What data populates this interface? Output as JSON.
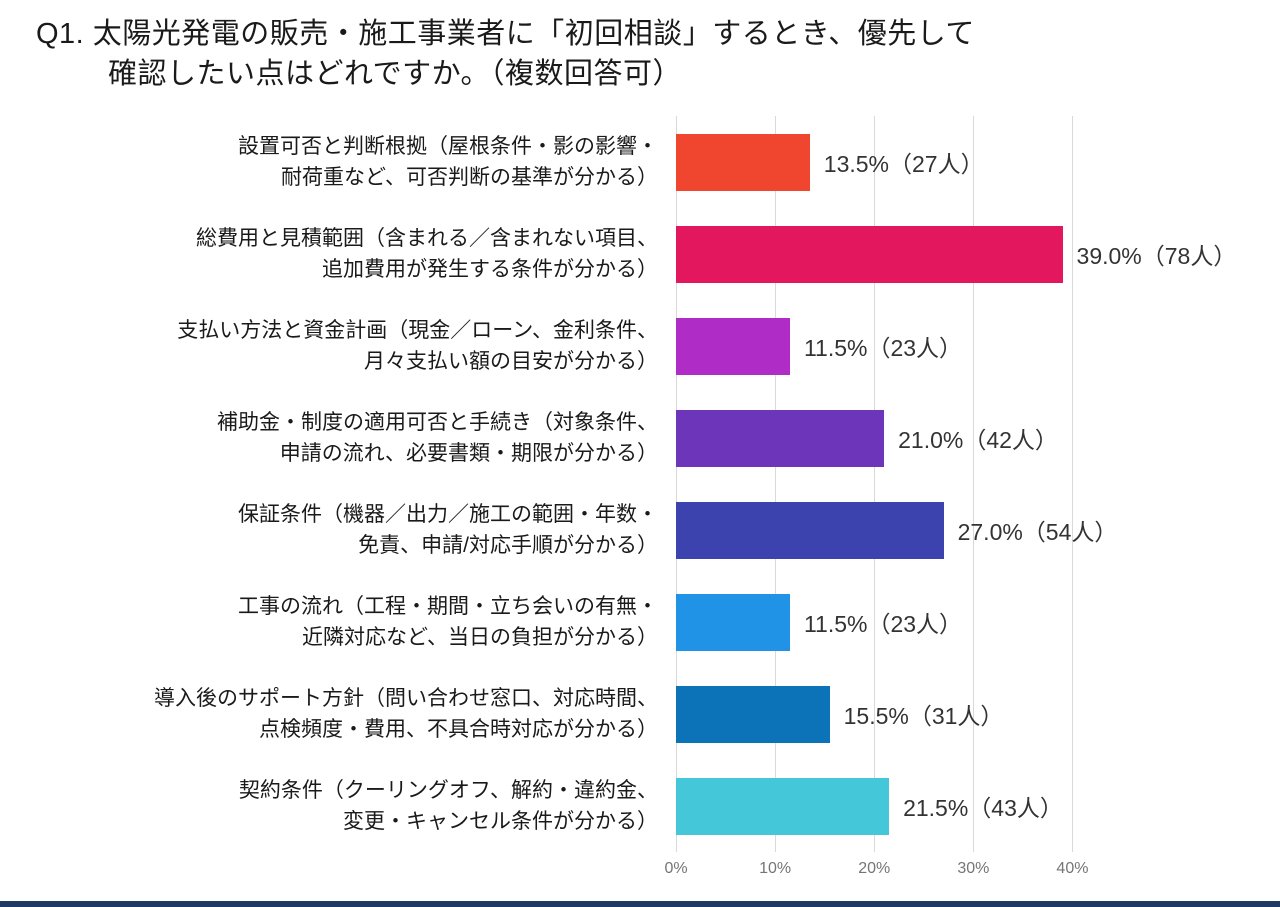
{
  "title": {
    "line1": "Q1. 太陽光発電の販売・施工事業者に「初回相談」するとき、優先して",
    "line2": "確認したい点はどれですか。（複数回答可）"
  },
  "chart_data": {
    "type": "bar",
    "orientation": "horizontal",
    "title": "Q1. 太陽光発電の販売・施工事業者に「初回相談」するとき、優先して確認したい点はどれですか。（複数回答可）",
    "xlabel": "",
    "ylabel": "",
    "xlim": [
      0,
      45
    ],
    "grid": true,
    "legend": "none",
    "x_ticks": [
      0,
      10,
      20,
      30,
      40
    ],
    "x_tick_labels": [
      "0%",
      "10%",
      "20%",
      "30%",
      "40%"
    ],
    "categories": [
      [
        "設置可否と判断根拠（屋根条件・影の影響・",
        "耐荷重など、可否判断の基準が分かる）"
      ],
      [
        "総費用と見積範囲（含まれる／含まれない項目、",
        "追加費用が発生する条件が分かる）"
      ],
      [
        "支払い方法と資金計画（現金／ローン、金利条件、",
        "月々支払い額の目安が分かる）"
      ],
      [
        "補助金・制度の適用可否と手続き（対象条件、",
        "申請の流れ、必要書類・期限が分かる）"
      ],
      [
        "保証条件（機器／出力／施工の範囲・年数・",
        "免責、申請/対応手順が分かる）"
      ],
      [
        "工事の流れ（工程・期間・立ち会いの有無・",
        "近隣対応など、当日の負担が分かる）"
      ],
      [
        "導入後のサポート方針（問い合わせ窓口、対応時間、",
        "点検頻度・費用、不具合時対応が分かる）"
      ],
      [
        "契約条件（クーリングオフ、解約・違約金、",
        "変更・キャンセル条件が分かる）"
      ]
    ],
    "values": [
      13.5,
      39.0,
      11.5,
      21.0,
      27.0,
      11.5,
      15.5,
      21.5
    ],
    "counts": [
      27,
      78,
      23,
      42,
      54,
      23,
      31,
      43
    ],
    "data_labels": [
      "13.5%（27人）",
      "39.0%（78人）",
      "11.5%（23人）",
      "21.0%（42人）",
      "27.0%（54人）",
      "11.5%（23人）",
      "15.5%（31人）",
      "21.5%（43人）"
    ],
    "bar_colors": [
      "#f0452f",
      "#e3175d",
      "#b02cc6",
      "#6d35ba",
      "#3c43ae",
      "#2093e6",
      "#0d73b9",
      "#43c7d9"
    ]
  },
  "colors": {
    "bottom_rule": "#1f3864",
    "gridline": "#d9d9d9",
    "tick_text": "#757575"
  }
}
